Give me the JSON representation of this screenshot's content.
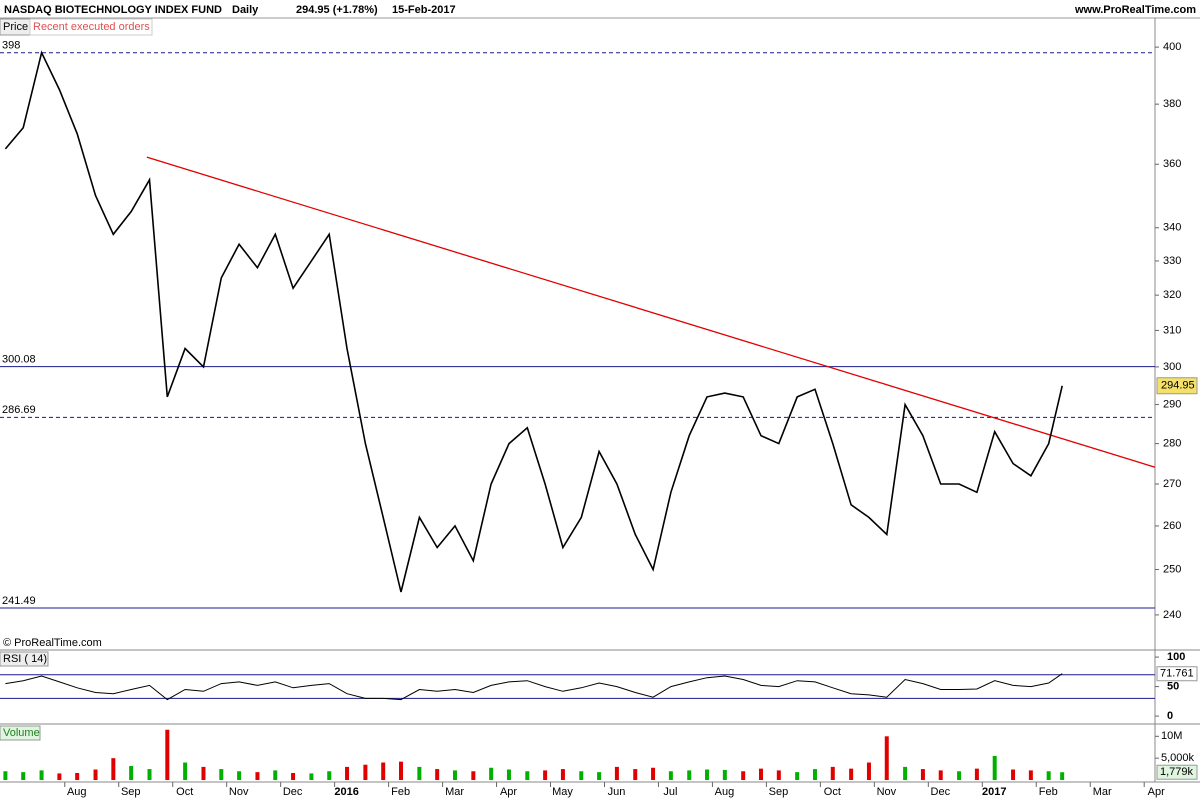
{
  "header": {
    "title": "NASDAQ BIOTECHNOLOGY INDEX FUND",
    "period": "Daily",
    "change": "294.95 (+1.78%)",
    "date": "15-Feb-2017",
    "site": "www.ProRealTime.com"
  },
  "chart_data": [
    {
      "type": "line",
      "panel_label": "Price",
      "orders_label": "Recent executed orders",
      "copyright": "© ProRealTime.com",
      "log_scale": true,
      "color": "#000000",
      "xlim": [
        -0.2,
        21.2
      ],
      "ylim": [
        235.7,
        403.3
      ],
      "yticks": [
        240,
        250,
        260,
        270,
        280,
        290,
        300,
        310,
        320,
        330,
        340,
        360,
        380,
        400
      ],
      "xticks": [
        {
          "value": 1,
          "label": "Aug"
        },
        {
          "value": 2,
          "label": "Sep"
        },
        {
          "value": 3,
          "label": "Oct"
        },
        {
          "value": 4,
          "label": "Nov"
        },
        {
          "value": 5,
          "label": "Dec"
        },
        {
          "value": 6,
          "label": "2016"
        },
        {
          "value": 7,
          "label": "Feb"
        },
        {
          "value": 8,
          "label": "Mar"
        },
        {
          "value": 9,
          "label": "Apr"
        },
        {
          "value": 10,
          "label": "May"
        },
        {
          "value": 11,
          "label": "Jun"
        },
        {
          "value": 12,
          "label": "Jul"
        },
        {
          "value": 13,
          "label": "Aug"
        },
        {
          "value": 14,
          "label": "Sep"
        },
        {
          "value": 15,
          "label": "Oct"
        },
        {
          "value": 16,
          "label": "Nov"
        },
        {
          "value": 17,
          "label": "Dec"
        },
        {
          "value": 18,
          "label": "2017"
        },
        {
          "value": 19,
          "label": "Feb"
        },
        {
          "value": 20,
          "label": "Mar"
        },
        {
          "value": 21,
          "label": "Apr"
        }
      ],
      "x": [
        -0.1,
        0.23,
        0.57,
        0.9,
        1.23,
        1.57,
        1.9,
        2.23,
        2.57,
        2.9,
        3.23,
        3.57,
        3.9,
        4.23,
        4.57,
        4.9,
        5.23,
        5.57,
        5.9,
        6.23,
        6.57,
        6.9,
        7.23,
        7.57,
        7.9,
        8.23,
        8.57,
        8.9,
        9.23,
        9.57,
        9.9,
        10.23,
        10.57,
        10.9,
        11.23,
        11.57,
        11.9,
        12.23,
        12.57,
        12.9,
        13.23,
        13.57,
        13.9,
        14.23,
        14.57,
        14.9,
        15.23,
        15.57,
        15.9,
        16.23,
        16.57,
        16.9,
        17.23,
        17.57,
        17.9,
        18.23,
        18.57,
        18.9,
        19.23,
        19.48
      ],
      "values": [
        365,
        372,
        398,
        385,
        370,
        350,
        338,
        345,
        355,
        292,
        305,
        300,
        325,
        335,
        328,
        338,
        322,
        330,
        338,
        305,
        280,
        262,
        245,
        262,
        255,
        260,
        252,
        270,
        280,
        284,
        270,
        255,
        262,
        278,
        270,
        258,
        250,
        268,
        282,
        292,
        293,
        292,
        282,
        280,
        292,
        294,
        280,
        265,
        262,
        258,
        290,
        282,
        270,
        270,
        268,
        283,
        275,
        272,
        280,
        294.95
      ],
      "last_value": 294.95,
      "levels": [
        {
          "value": 398,
          "color": "#1a1a8c",
          "dashed": true
        },
        {
          "value": 300.08,
          "color": "#1a1a8c",
          "dashed": false
        },
        {
          "value": 286.69,
          "color": "#1a1a8c",
          "dashed": true
        },
        {
          "value": 241.49,
          "color": "#1a1a8c",
          "dashed": false
        }
      ],
      "trendline": {
        "x": [
          2.52,
          21.2
        ],
        "values": [
          362.3,
          274.1
        ],
        "color": "#e00000"
      }
    },
    {
      "type": "line",
      "panel_label": "RSI ( 14)",
      "color": "#000000",
      "ylim": [
        -10,
        112
      ],
      "yticks": [
        0,
        50,
        100
      ],
      "levels": [
        70,
        30
      ],
      "values": [
        55,
        60,
        68,
        58,
        48,
        40,
        38,
        45,
        52,
        28,
        45,
        42,
        55,
        58,
        52,
        58,
        48,
        52,
        55,
        38,
        30,
        30,
        28,
        45,
        42,
        45,
        40,
        52,
        58,
        60,
        50,
        42,
        48,
        56,
        50,
        40,
        32,
        50,
        58,
        65,
        68,
        62,
        52,
        50,
        60,
        58,
        48,
        38,
        36,
        32,
        62,
        55,
        45,
        45,
        46,
        60,
        52,
        50,
        56,
        71.761
      ]
    },
    {
      "type": "bar",
      "panel_label": "Volume",
      "ylim": [
        0,
        11.9
      ],
      "yticks": [
        {
          "value": 10,
          "label": "10M"
        },
        {
          "value": 5,
          "label": "5,000k"
        }
      ],
      "last": {
        "value": 1.779,
        "label": "1,779k"
      },
      "up_color": "#00b000",
      "down_color": "#e00000",
      "values": [
        2,
        1.8,
        2.2,
        1.5,
        1.6,
        2.4,
        5,
        3.2,
        2.5,
        11.5,
        4,
        3,
        2.5,
        2,
        1.8,
        2.2,
        1.6,
        1.5,
        2,
        3,
        3.5,
        4,
        4.2,
        3,
        2.5,
        2.2,
        2,
        2.8,
        2.4,
        2,
        2.2,
        2.5,
        2,
        1.8,
        3,
        2.5,
        2.8,
        2,
        2.2,
        2.4,
        2.3,
        2,
        2.6,
        2.2,
        1.8,
        2.5,
        3,
        2.6,
        4,
        10,
        3,
        2.5,
        2.2,
        2,
        2.6,
        5.5,
        2.4,
        2.2,
        2,
        1.779
      ]
    }
  ]
}
